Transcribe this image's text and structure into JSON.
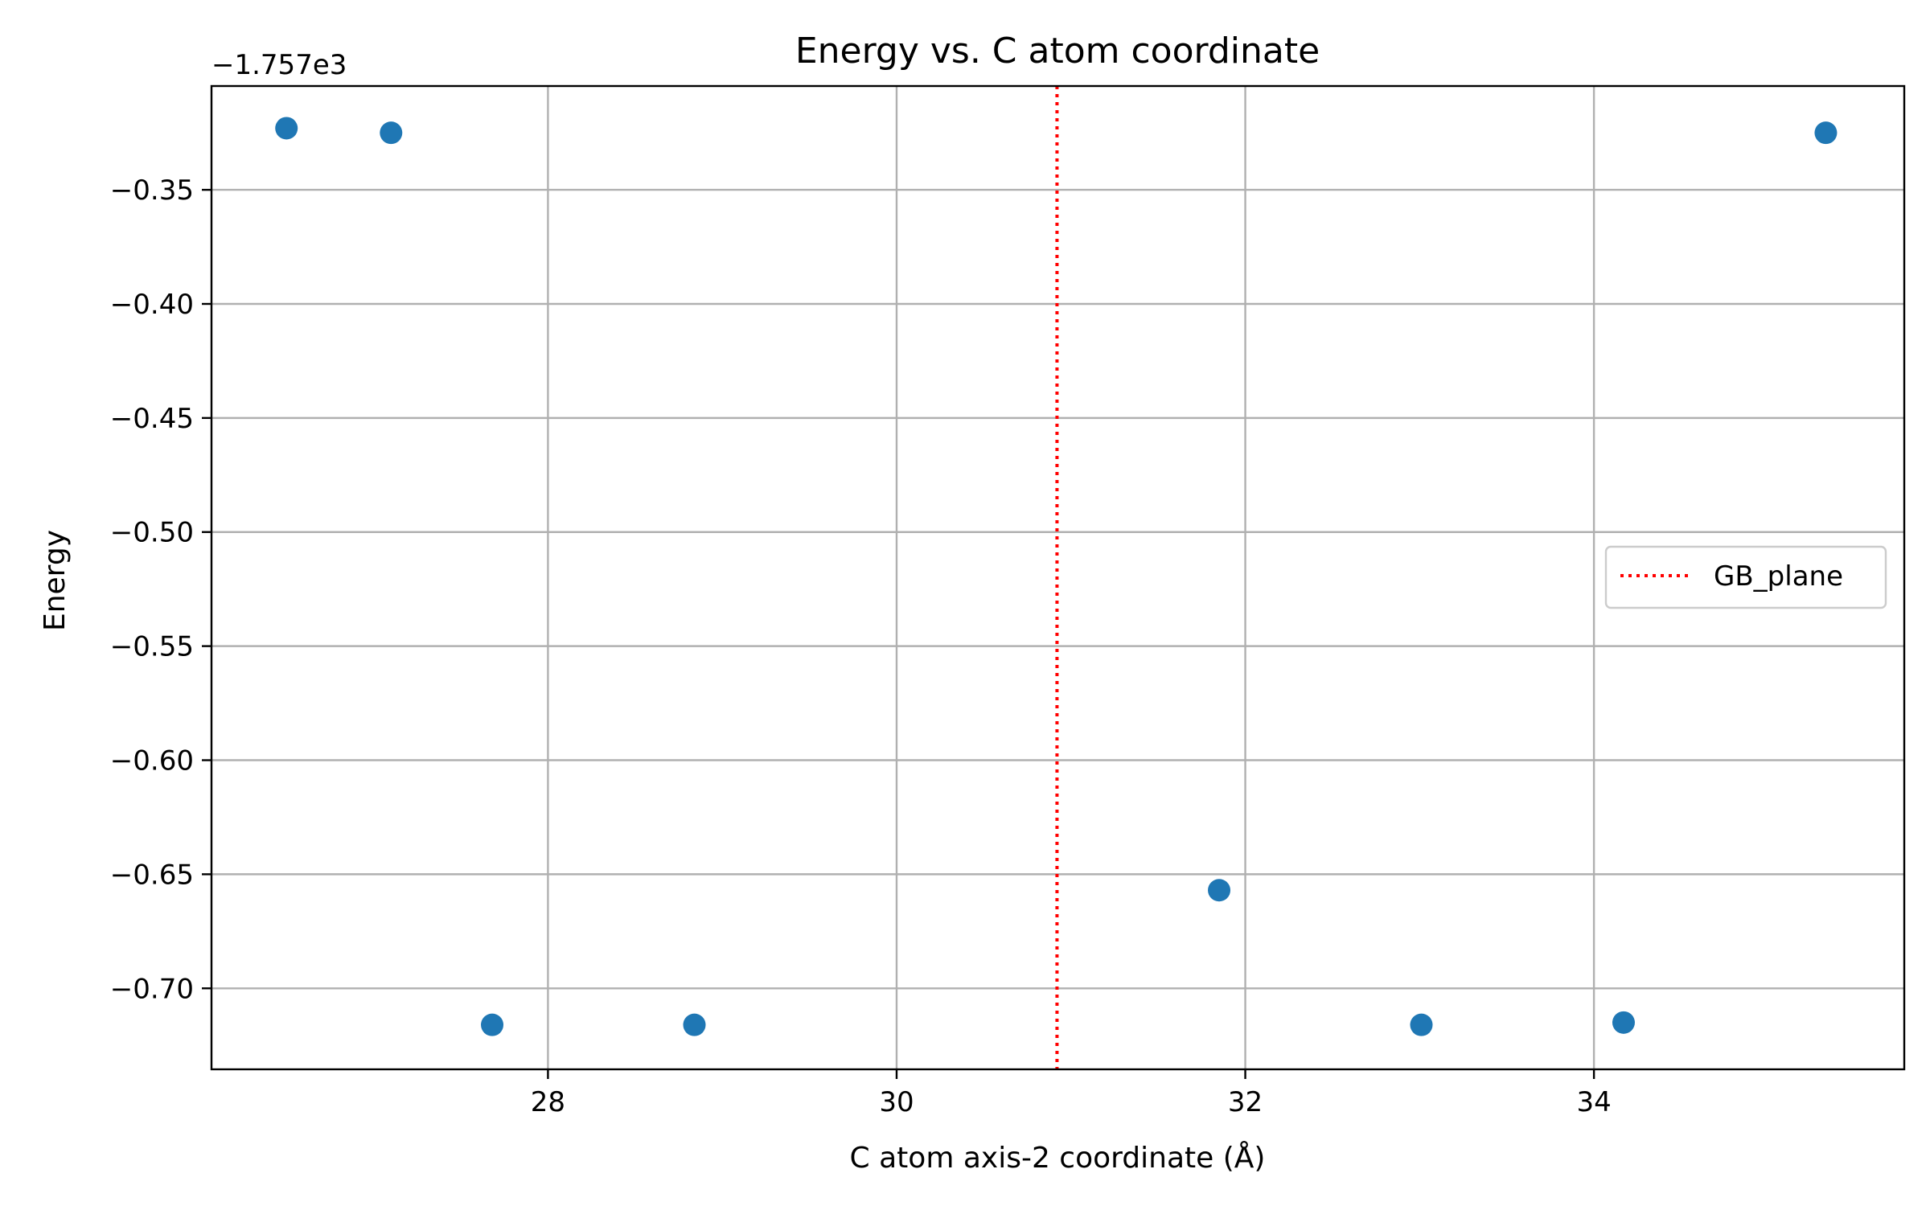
{
  "chart_data": {
    "type": "scatter",
    "title": "Energy vs. C atom coordinate",
    "xlabel": "C atom axis-2 coordinate (Å)",
    "ylabel": "Energy",
    "y_offset_label": "−1.757e3",
    "xlim": [
      26.07,
      35.78
    ],
    "ylim": [
      -0.7355,
      -0.3045
    ],
    "xticks": [
      28,
      30,
      32,
      34
    ],
    "xtick_labels": [
      "28",
      "30",
      "32",
      "34"
    ],
    "yticks": [
      -0.35,
      -0.4,
      -0.45,
      -0.5,
      -0.55,
      -0.6,
      -0.65,
      -0.7
    ],
    "ytick_labels": [
      "−0.35",
      "−0.40",
      "−0.45",
      "−0.50",
      "−0.55",
      "−0.60",
      "−0.65",
      "−0.70"
    ],
    "grid": true,
    "points": {
      "x": [
        26.5,
        27.1,
        27.68,
        28.84,
        31.85,
        33.01,
        34.17,
        35.33
      ],
      "y": [
        -0.323,
        -0.325,
        -0.716,
        -0.716,
        -0.657,
        -0.716,
        -0.715,
        -0.325
      ],
      "color": "#1f77b4"
    },
    "vline": {
      "x": 30.92,
      "color": "#ff0000",
      "label": "GB_plane"
    },
    "legend": {
      "placement": "center-right",
      "entries": [
        "GB_plane"
      ]
    }
  }
}
